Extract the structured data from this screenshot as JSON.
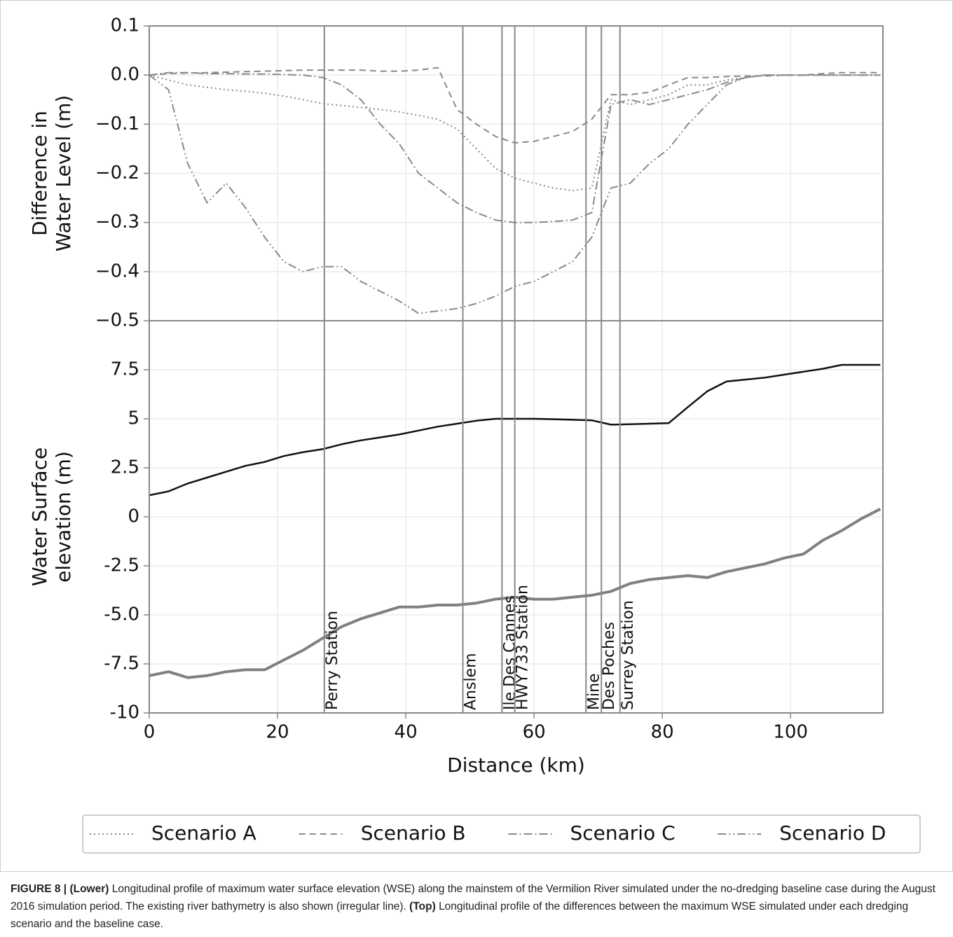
{
  "chart_data": [
    {
      "type": "line",
      "ylabel": [
        "Difference in",
        "Water Level (m)"
      ],
      "xlim": [
        0,
        114.4
      ],
      "xticks": [
        0,
        20,
        40,
        60,
        80,
        100
      ],
      "ylim": [
        -0.5,
        0.1
      ],
      "yticks": [
        {
          "value": -0.5,
          "label": "−0.5"
        },
        {
          "value": -0.4,
          "label": "−0.4"
        },
        {
          "value": -0.3,
          "label": "−0.3"
        },
        {
          "value": -0.2,
          "label": "−0.2"
        },
        {
          "value": -0.1,
          "label": "−0.1"
        },
        {
          "value": 0,
          "label": "0.0"
        },
        0.1
      ],
      "grid": true,
      "legend": "below",
      "x": [
        0,
        3,
        6,
        9,
        12,
        15,
        18,
        21,
        24,
        27,
        30,
        33,
        36,
        39,
        42,
        45,
        48,
        51,
        54,
        57,
        60,
        63,
        66,
        69,
        72,
        75,
        78,
        81,
        84,
        87,
        90,
        93,
        96,
        99,
        102,
        105,
        108,
        111,
        114
      ],
      "series": [
        {
          "name": "Scenario A",
          "color": "#8a8a8a",
          "dash": "dotted",
          "values": [
            0,
            -0.01,
            -0.02,
            -0.025,
            -0.03,
            -0.033,
            -0.037,
            -0.043,
            -0.05,
            -0.058,
            -0.062,
            -0.066,
            -0.07,
            -0.075,
            -0.082,
            -0.09,
            -0.11,
            -0.15,
            -0.19,
            -0.21,
            -0.22,
            -0.23,
            -0.235,
            -0.23,
            -0.05,
            -0.06,
            -0.05,
            -0.04,
            -0.02,
            -0.02,
            -0.01,
            -0.005,
            0,
            0,
            0,
            0,
            0,
            0,
            0
          ]
        },
        {
          "name": "Scenario B",
          "color": "#8a8a8a",
          "dash": "dashed",
          "values": [
            0,
            0.003,
            0.004,
            0.005,
            0.006,
            0.007,
            0.008,
            0.009,
            0.01,
            0.01,
            0.01,
            0.01,
            0.008,
            0.008,
            0.01,
            0.015,
            -0.07,
            -0.1,
            -0.125,
            -0.138,
            -0.135,
            -0.125,
            -0.115,
            -0.09,
            -0.04,
            -0.04,
            -0.035,
            -0.02,
            -0.005,
            -0.005,
            -0.003,
            -0.002,
            -0.002,
            0,
            0,
            0.003,
            0.005,
            0.005,
            0.005
          ]
        },
        {
          "name": "Scenario C",
          "color": "#8a8a8a",
          "dash": "dashdot",
          "values": [
            0,
            0.005,
            0.005,
            0.003,
            0.003,
            0.002,
            0.002,
            0.001,
            0,
            -0.005,
            -0.02,
            -0.05,
            -0.1,
            -0.14,
            -0.2,
            -0.23,
            -0.26,
            -0.28,
            -0.295,
            -0.3,
            -0.3,
            -0.298,
            -0.295,
            -0.28,
            -0.06,
            -0.05,
            -0.06,
            -0.05,
            -0.04,
            -0.03,
            -0.015,
            -0.005,
            0,
            0,
            0,
            0,
            0,
            0,
            0
          ]
        },
        {
          "name": "Scenario D",
          "color": "#8a8a8a",
          "dash": "dashdotdot",
          "values": [
            0,
            -0.03,
            -0.18,
            -0.26,
            -0.22,
            -0.27,
            -0.33,
            -0.38,
            -0.4,
            -0.39,
            -0.39,
            -0.42,
            -0.44,
            -0.46,
            -0.485,
            -0.48,
            -0.475,
            -0.465,
            -0.45,
            -0.43,
            -0.42,
            -0.4,
            -0.38,
            -0.33,
            -0.23,
            -0.22,
            -0.18,
            -0.15,
            -0.1,
            -0.06,
            -0.02,
            -0.005,
            0,
            0,
            0,
            0,
            0,
            0,
            0
          ]
        }
      ]
    },
    {
      "type": "line",
      "ylabel": [
        "Water Surface",
        "elevation (m)"
      ],
      "xlabel": "Distance (km)",
      "xlim": [
        0,
        114.4
      ],
      "xticks": [
        0,
        20,
        40,
        60,
        80,
        100
      ],
      "ylim": [
        -10,
        10
      ],
      "yticks": [
        -10,
        -7.5,
        {
          "value": -5,
          "label": "-5.0"
        },
        -2.5,
        0,
        2.5,
        5,
        7.5
      ],
      "grid": true,
      "x": [
        0,
        3,
        6,
        9,
        12,
        15,
        18,
        21,
        24,
        27,
        30,
        33,
        36,
        39,
        42,
        45,
        48,
        51,
        54,
        57,
        60,
        63,
        66,
        69,
        72,
        75,
        78,
        81,
        84,
        87,
        90,
        93,
        96,
        99,
        102,
        105,
        108,
        111,
        114
      ],
      "series": [
        {
          "color": "#111111",
          "width": 2.5,
          "values": [
            1.1,
            1.3,
            1.7,
            2.0,
            2.3,
            2.6,
            2.8,
            3.1,
            3.3,
            3.45,
            3.7,
            3.9,
            4.05,
            4.2,
            4.4,
            4.6,
            4.75,
            4.9,
            5.0,
            5.0,
            5.0,
            4.98,
            4.95,
            4.92,
            4.7,
            4.72,
            4.75,
            4.78,
            5.6,
            6.4,
            6.9,
            7.0,
            7.1,
            7.25,
            7.4,
            7.55,
            7.75,
            7.75,
            7.75
          ]
        },
        {
          "color": "#808080",
          "width": 4,
          "values": [
            -8.1,
            -7.9,
            -8.2,
            -8.1,
            -7.9,
            -7.8,
            -7.8,
            -7.3,
            -6.8,
            -6.2,
            -5.6,
            -5.2,
            -4.9,
            -4.6,
            -4.6,
            -4.5,
            -4.5,
            -4.4,
            -4.2,
            -4.1,
            -4.2,
            -4.2,
            -4.1,
            -4.0,
            -3.8,
            -3.4,
            -3.2,
            -3.1,
            -3.0,
            -3.1,
            -2.8,
            -2.6,
            -2.4,
            -2.1,
            -1.9,
            -1.2,
            -0.7,
            -0.1,
            0.4
          ]
        }
      ],
      "stations": [
        {
          "x": 27.3,
          "label": "Perry Station"
        },
        {
          "x": 48.9,
          "label": "Anslem"
        },
        {
          "x": 55.0,
          "label": "Ile Des Cannes"
        },
        {
          "x": 57.0,
          "label": "HWY733 Station"
        },
        {
          "x": 68.1,
          "label": "Mine"
        },
        {
          "x": 70.5,
          "label": "Des Poches"
        },
        {
          "x": 73.4,
          "label": "Surrey Station"
        }
      ]
    }
  ],
  "caption": {
    "figure": "FIGURE 8 |",
    "lower_label": "(Lower)",
    "lower_text": "Longitudinal profile of maximum water surface elevation (WSE) along the mainstem of the Vermilion River simulated under the no-dredging baseline case during the August 2016 simulation period. The existing river bathymetry is also shown (irregular line).",
    "top_label": "(Top)",
    "top_text": "Longitudinal profile of the differences between the maximum WSE simulated under each dredging scenario and the baseline case."
  }
}
